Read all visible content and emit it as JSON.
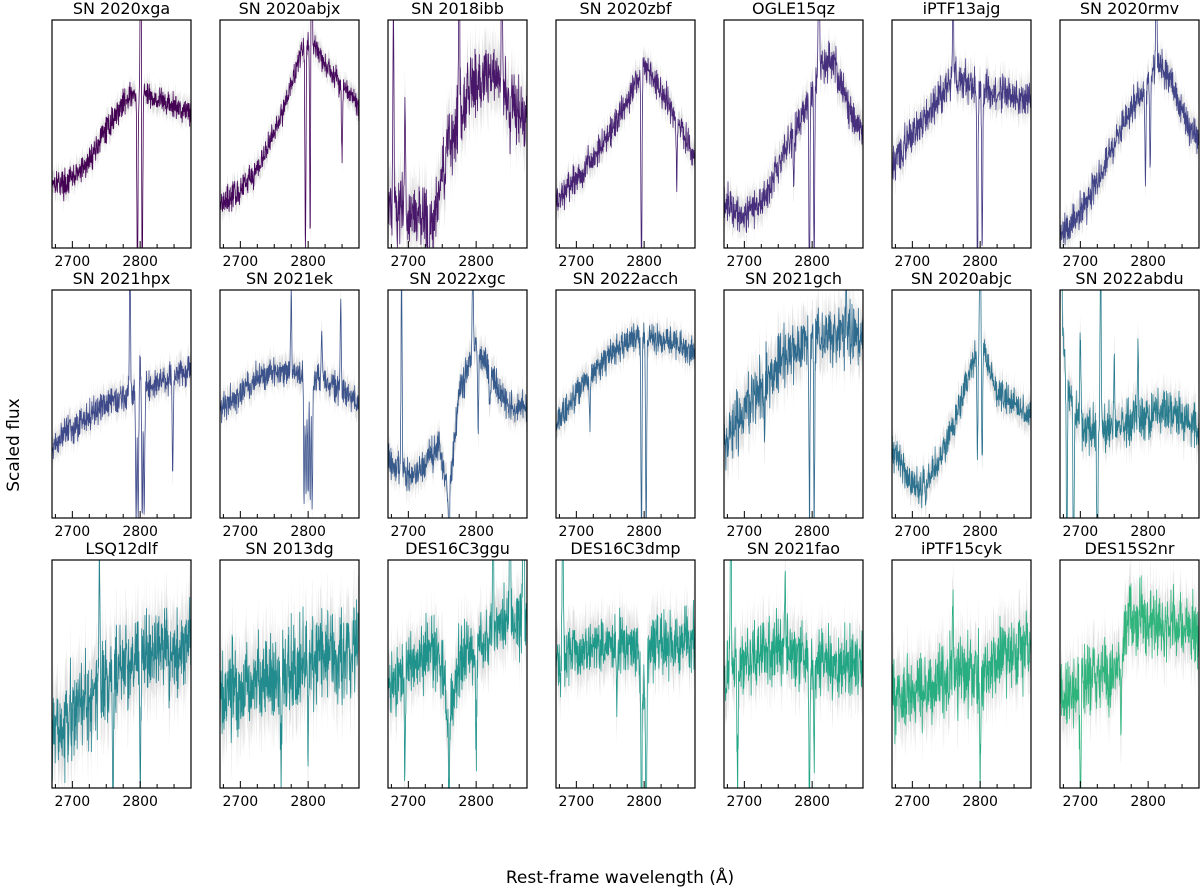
{
  "figure": {
    "xlabel": "Rest-frame wavelength (Å)",
    "ylabel": "Scaled flux"
  },
  "chart_data": {
    "type": "line",
    "layout": "3x7 grid of spectra panels",
    "xlim": [
      2670,
      2875
    ],
    "xticks_labeled": [
      2700,
      2800
    ],
    "xticks_minor_step": 25,
    "yticks": "none",
    "error_band_color": "#d9d9d9",
    "panels": [
      {
        "name": "SN 2020xga",
        "color": "#440154",
        "noise": 0.035,
        "anchors": [
          [
            2670,
            0.3
          ],
          [
            2690,
            0.28
          ],
          [
            2720,
            0.36
          ],
          [
            2750,
            0.52
          ],
          [
            2780,
            0.66
          ],
          [
            2800,
            0.68
          ],
          [
            2820,
            0.66
          ],
          [
            2850,
            0.62
          ],
          [
            2875,
            0.6
          ]
        ],
        "lines": [
          [
            2796,
            -0.9
          ],
          [
            2803,
            -0.9
          ],
          [
            2801,
            0.95
          ]
        ]
      },
      {
        "name": "SN 2020abjx",
        "color": "#46085c",
        "noise": 0.035,
        "anchors": [
          [
            2670,
            0.2
          ],
          [
            2700,
            0.25
          ],
          [
            2730,
            0.37
          ],
          [
            2760,
            0.58
          ],
          [
            2790,
            0.86
          ],
          [
            2805,
            0.93
          ],
          [
            2820,
            0.82
          ],
          [
            2850,
            0.72
          ],
          [
            2875,
            0.62
          ]
        ],
        "lines": [
          [
            2796,
            -0.9
          ],
          [
            2803,
            -0.9
          ],
          [
            2805,
            0.95
          ],
          [
            2850,
            -0.3
          ]
        ]
      },
      {
        "name": "SN 2018ibb",
        "color": "#481769",
        "noise": 0.09,
        "anchors": [
          [
            2670,
            0.2
          ],
          [
            2700,
            0.15
          ],
          [
            2735,
            0.1
          ],
          [
            2760,
            0.45
          ],
          [
            2790,
            0.7
          ],
          [
            2815,
            0.78
          ],
          [
            2840,
            0.7
          ],
          [
            2860,
            0.6
          ],
          [
            2875,
            0.55
          ]
        ],
        "lines": [
          [
            2678,
            0.9
          ],
          [
            2695,
            0.4
          ],
          [
            2775,
            0.9
          ],
          [
            2838,
            0.9
          ],
          [
            2850,
            -0.2
          ],
          [
            2730,
            -0.5
          ]
        ]
      },
      {
        "name": "SN 2020zbf",
        "color": "#482374",
        "noise": 0.04,
        "anchors": [
          [
            2670,
            0.2
          ],
          [
            2700,
            0.3
          ],
          [
            2730,
            0.42
          ],
          [
            2760,
            0.56
          ],
          [
            2790,
            0.74
          ],
          [
            2800,
            0.8
          ],
          [
            2820,
            0.72
          ],
          [
            2850,
            0.55
          ],
          [
            2875,
            0.4
          ]
        ],
        "lines": [
          [
            2796,
            -0.9
          ],
          [
            2803,
            -0.9
          ],
          [
            2803,
            0.9
          ],
          [
            2848,
            -0.3
          ]
        ]
      },
      {
        "name": "OGLE15qz",
        "color": "#472f7d",
        "noise": 0.05,
        "anchors": [
          [
            2670,
            0.2
          ],
          [
            2700,
            0.15
          ],
          [
            2730,
            0.22
          ],
          [
            2760,
            0.42
          ],
          [
            2790,
            0.62
          ],
          [
            2815,
            0.82
          ],
          [
            2835,
            0.8
          ],
          [
            2855,
            0.6
          ],
          [
            2875,
            0.5
          ]
        ],
        "lines": [
          [
            2796,
            -0.9
          ],
          [
            2803,
            -0.8
          ],
          [
            2810,
            0.95
          ],
          [
            2773,
            -0.2
          ]
        ]
      },
      {
        "name": "iPTF13ajg",
        "color": "#443983",
        "noise": 0.05,
        "anchors": [
          [
            2670,
            0.35
          ],
          [
            2700,
            0.5
          ],
          [
            2730,
            0.62
          ],
          [
            2760,
            0.74
          ],
          [
            2790,
            0.72
          ],
          [
            2820,
            0.68
          ],
          [
            2850,
            0.66
          ],
          [
            2875,
            0.64
          ]
        ],
        "lines": [
          [
            2796,
            -0.9
          ],
          [
            2803,
            -0.7
          ],
          [
            2760,
            0.5
          ]
        ]
      },
      {
        "name": "SN 2020rmv",
        "color": "#414487",
        "noise": 0.045,
        "anchors": [
          [
            2670,
            0.05
          ],
          [
            2700,
            0.15
          ],
          [
            2730,
            0.32
          ],
          [
            2760,
            0.52
          ],
          [
            2790,
            0.68
          ],
          [
            2815,
            0.82
          ],
          [
            2835,
            0.72
          ],
          [
            2855,
            0.55
          ],
          [
            2875,
            0.48
          ]
        ],
        "lines": [
          [
            2796,
            -0.4
          ],
          [
            2803,
            -0.4
          ],
          [
            2812,
            0.5
          ]
        ]
      },
      {
        "name": "SN 2021hpx",
        "color": "#3e4989",
        "noise": 0.04,
        "anchors": [
          [
            2670,
            0.3
          ],
          [
            2700,
            0.4
          ],
          [
            2730,
            0.46
          ],
          [
            2760,
            0.52
          ],
          [
            2790,
            0.54
          ],
          [
            2820,
            0.58
          ],
          [
            2850,
            0.62
          ],
          [
            2875,
            0.66
          ]
        ],
        "lines": [
          [
            2794,
            -0.55
          ],
          [
            2797,
            -0.55
          ],
          [
            2800,
            -0.55
          ],
          [
            2803,
            -0.55
          ],
          [
            2806,
            -0.55
          ],
          [
            2785,
            0.6
          ],
          [
            2800,
            0.7
          ],
          [
            2848,
            -0.4
          ]
        ]
      },
      {
        "name": "SN 2021ek",
        "color": "#3b528b",
        "noise": 0.04,
        "anchors": [
          [
            2670,
            0.48
          ],
          [
            2700,
            0.55
          ],
          [
            2730,
            0.62
          ],
          [
            2760,
            0.65
          ],
          [
            2790,
            0.63
          ],
          [
            2820,
            0.6
          ],
          [
            2850,
            0.55
          ],
          [
            2875,
            0.5
          ]
        ],
        "lines": [
          [
            2794,
            -0.55
          ],
          [
            2797,
            -0.55
          ],
          [
            2800,
            -0.55
          ],
          [
            2803,
            -0.55
          ],
          [
            2806,
            -0.55
          ],
          [
            2775,
            0.35
          ],
          [
            2848,
            0.4
          ],
          [
            2820,
            0.25
          ]
        ]
      },
      {
        "name": "SN 2022xgc",
        "color": "#375a8c",
        "noise": 0.045,
        "anchors": [
          [
            2670,
            0.25
          ],
          [
            2700,
            0.18
          ],
          [
            2730,
            0.25
          ],
          [
            2745,
            0.32
          ],
          [
            2760,
            0.1
          ],
          [
            2775,
            0.55
          ],
          [
            2800,
            0.78
          ],
          [
            2825,
            0.6
          ],
          [
            2850,
            0.48
          ],
          [
            2875,
            0.5
          ]
        ],
        "lines": [
          [
            2690,
            0.9
          ],
          [
            2760,
            -0.3
          ],
          [
            2795,
            0.45
          ],
          [
            2803,
            -0.4
          ],
          [
            2820,
            -0.2
          ]
        ]
      },
      {
        "name": "SN 2022acch",
        "color": "#33638d",
        "noise": 0.04,
        "anchors": [
          [
            2670,
            0.4
          ],
          [
            2700,
            0.55
          ],
          [
            2730,
            0.66
          ],
          [
            2760,
            0.74
          ],
          [
            2790,
            0.8
          ],
          [
            2820,
            0.78
          ],
          [
            2850,
            0.76
          ],
          [
            2875,
            0.72
          ]
        ],
        "lines": [
          [
            2796,
            -0.9
          ],
          [
            2803,
            -0.9
          ],
          [
            2720,
            -0.2
          ]
        ]
      },
      {
        "name": "SN 2021gch",
        "color": "#2f6b8e",
        "noise": 0.08,
        "anchors": [
          [
            2670,
            0.3
          ],
          [
            2700,
            0.48
          ],
          [
            2730,
            0.6
          ],
          [
            2760,
            0.7
          ],
          [
            2790,
            0.78
          ],
          [
            2820,
            0.8
          ],
          [
            2850,
            0.8
          ],
          [
            2875,
            0.8
          ]
        ],
        "lines": [
          [
            2796,
            -0.8
          ],
          [
            2803,
            -0.8
          ],
          [
            2730,
            -0.3
          ],
          [
            2850,
            0.3
          ]
        ]
      },
      {
        "name": "SN 2020abjc",
        "color": "#2c728e",
        "noise": 0.045,
        "anchors": [
          [
            2670,
            0.3
          ],
          [
            2690,
            0.2
          ],
          [
            2710,
            0.12
          ],
          [
            2740,
            0.25
          ],
          [
            2770,
            0.5
          ],
          [
            2800,
            0.8
          ],
          [
            2825,
            0.55
          ],
          [
            2850,
            0.5
          ],
          [
            2875,
            0.45
          ]
        ],
        "lines": [
          [
            2796,
            -0.5
          ],
          [
            2803,
            -0.5
          ],
          [
            2800,
            0.5
          ],
          [
            2720,
            -0.1
          ]
        ]
      },
      {
        "name": "SN 2022abdu",
        "color": "#287c8e",
        "noise": 0.06,
        "anchors": [
          [
            2670,
            0.9
          ],
          [
            2680,
            0.6
          ],
          [
            2700,
            0.4
          ],
          [
            2730,
            0.38
          ],
          [
            2760,
            0.4
          ],
          [
            2790,
            0.44
          ],
          [
            2820,
            0.46
          ],
          [
            2850,
            0.44
          ],
          [
            2875,
            0.4
          ]
        ],
        "lines": [
          [
            2672,
            0.9
          ],
          [
            2680,
            -0.9
          ],
          [
            2690,
            -0.8
          ],
          [
            2700,
            0.4
          ],
          [
            2725,
            -0.9
          ],
          [
            2730,
            0.9
          ],
          [
            2750,
            0.3
          ],
          [
            2785,
            0.3
          ]
        ]
      },
      {
        "name": "LSQ12dlf",
        "color": "#25838e",
        "noise": 0.12,
        "anchors": [
          [
            2670,
            0.25
          ],
          [
            2700,
            0.32
          ],
          [
            2730,
            0.4
          ],
          [
            2760,
            0.5
          ],
          [
            2790,
            0.55
          ],
          [
            2820,
            0.6
          ],
          [
            2850,
            0.62
          ],
          [
            2875,
            0.65
          ]
        ],
        "lines": [
          [
            2760,
            -0.6
          ],
          [
            2800,
            -0.6
          ],
          [
            2740,
            0.6
          ]
        ]
      },
      {
        "name": "SN 2013dg",
        "color": "#228b8d",
        "noise": 0.12,
        "anchors": [
          [
            2670,
            0.4
          ],
          [
            2700,
            0.44
          ],
          [
            2730,
            0.48
          ],
          [
            2760,
            0.5
          ],
          [
            2790,
            0.54
          ],
          [
            2820,
            0.56
          ],
          [
            2850,
            0.58
          ],
          [
            2875,
            0.6
          ]
        ],
        "lines": [
          [
            2760,
            -0.4
          ],
          [
            2800,
            -0.4
          ]
        ]
      },
      {
        "name": "DES16C3ggu",
        "color": "#1f938b",
        "noise": 0.09,
        "anchors": [
          [
            2670,
            0.45
          ],
          [
            2700,
            0.52
          ],
          [
            2730,
            0.6
          ],
          [
            2750,
            0.54
          ],
          [
            2760,
            0.3
          ],
          [
            2775,
            0.55
          ],
          [
            2800,
            0.62
          ],
          [
            2830,
            0.7
          ],
          [
            2850,
            0.72
          ],
          [
            2875,
            0.75
          ]
        ],
        "lines": [
          [
            2695,
            -0.5
          ],
          [
            2760,
            -0.4
          ],
          [
            2800,
            -0.5
          ],
          [
            2825,
            0.8
          ],
          [
            2850,
            0.9
          ],
          [
            2870,
            0.9
          ]
        ]
      },
      {
        "name": "DES16C3dmp",
        "color": "#1f9a8a",
        "noise": 0.085,
        "anchors": [
          [
            2670,
            0.55
          ],
          [
            2700,
            0.6
          ],
          [
            2730,
            0.62
          ],
          [
            2760,
            0.64
          ],
          [
            2790,
            0.6
          ],
          [
            2800,
            0.4
          ],
          [
            2810,
            0.62
          ],
          [
            2840,
            0.64
          ],
          [
            2875,
            0.66
          ]
        ],
        "lines": [
          [
            2796,
            -0.7
          ],
          [
            2803,
            -0.7
          ],
          [
            2680,
            0.8
          ],
          [
            2760,
            -0.3
          ]
        ]
      },
      {
        "name": "SN 2021fao",
        "color": "#21a685",
        "noise": 0.09,
        "anchors": [
          [
            2670,
            0.5
          ],
          [
            2700,
            0.55
          ],
          [
            2730,
            0.58
          ],
          [
            2760,
            0.6
          ],
          [
            2790,
            0.58
          ],
          [
            2820,
            0.56
          ],
          [
            2850,
            0.55
          ],
          [
            2875,
            0.54
          ]
        ],
        "lines": [
          [
            2680,
            0.8
          ],
          [
            2690,
            -0.5
          ],
          [
            2796,
            -0.7
          ],
          [
            2803,
            -0.5
          ],
          [
            2760,
            0.3
          ]
        ]
      },
      {
        "name": "iPTF15cyk",
        "color": "#28ae80",
        "noise": 0.1,
        "anchors": [
          [
            2670,
            0.4
          ],
          [
            2700,
            0.42
          ],
          [
            2730,
            0.45
          ],
          [
            2760,
            0.48
          ],
          [
            2790,
            0.52
          ],
          [
            2820,
            0.55
          ],
          [
            2850,
            0.6
          ],
          [
            2875,
            0.62
          ]
        ],
        "lines": [
          [
            2800,
            -0.5
          ],
          [
            2760,
            0.4
          ]
        ]
      },
      {
        "name": "DES15S2nr",
        "color": "#2fb47c",
        "noise": 0.09,
        "anchors": [
          [
            2670,
            0.4
          ],
          [
            2700,
            0.45
          ],
          [
            2730,
            0.5
          ],
          [
            2755,
            0.52
          ],
          [
            2770,
            0.75
          ],
          [
            2800,
            0.74
          ],
          [
            2830,
            0.72
          ],
          [
            2850,
            0.7
          ],
          [
            2875,
            0.7
          ]
        ],
        "lines": [
          [
            2700,
            -0.6
          ],
          [
            2760,
            -0.3
          ]
        ]
      }
    ]
  }
}
